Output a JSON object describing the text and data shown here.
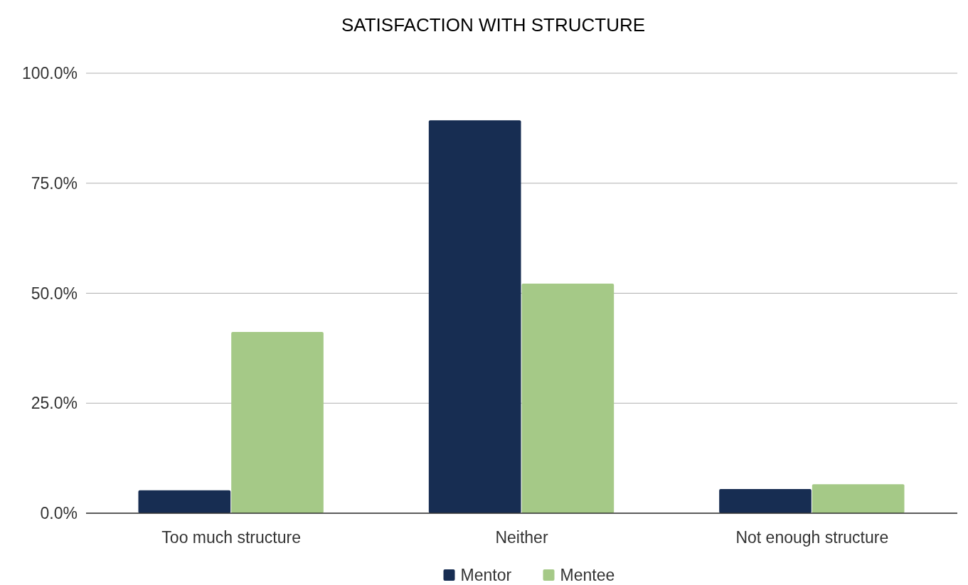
{
  "chart_data": {
    "type": "bar",
    "title": "SATISFACTION WITH STRUCTURE",
    "categories": [
      "Too much structure",
      "Neither",
      "Not enough structure"
    ],
    "series": [
      {
        "name": "Mentor",
        "color": "#172d52",
        "values": [
          5.2,
          89.3,
          5.5
        ]
      },
      {
        "name": "Mentee",
        "color": "#a5c987",
        "values": [
          41.2,
          52.2,
          6.6
        ]
      }
    ],
    "ylim": [
      0,
      100
    ],
    "yticks": [
      {
        "value": 0,
        "label": "0.0%"
      },
      {
        "value": 25,
        "label": "25.0%"
      },
      {
        "value": 50,
        "label": "50.0%"
      },
      {
        "value": 75,
        "label": "75.0%"
      },
      {
        "value": 100,
        "label": "100.0%"
      }
    ],
    "grid": "y",
    "legend": "bottom"
  }
}
